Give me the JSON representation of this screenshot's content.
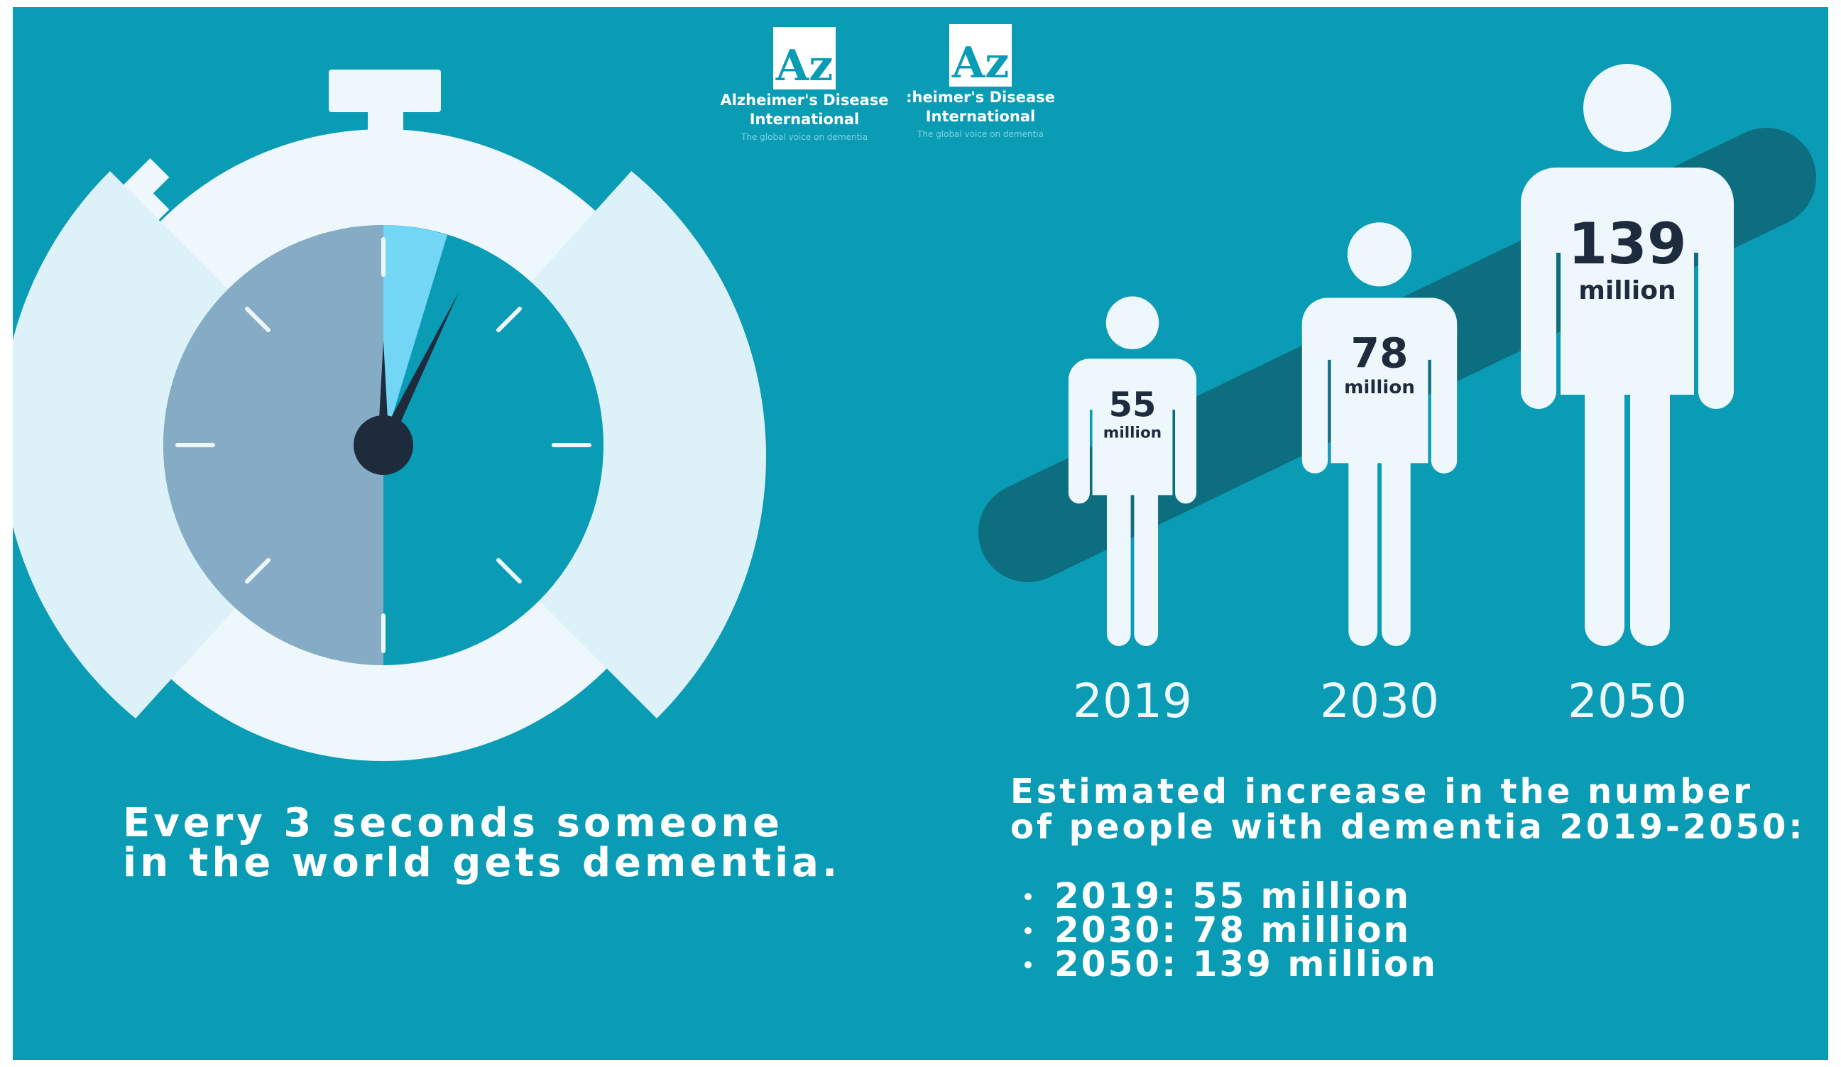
{
  "colors": {
    "panel": "#0a9bb5",
    "light": "#eef7fb",
    "dial_gray": "#85acc4",
    "wedge": "#73d6f5",
    "band": "#0d6e80",
    "hand": "#1e2b3d"
  },
  "logos": [
    {
      "name_line1": "Alzheimer's Disease",
      "name_line2": "International",
      "tagline": "The global voice on dementia"
    },
    {
      "name_line1": ":heimer's Disease",
      "name_line2": "International",
      "tagline": "The global voice on dementia"
    }
  ],
  "stopwatch": {
    "icon": "stopwatch-icon",
    "caption_line1": "Every 3 seconds someone",
    "caption_line2": "in the world gets dementia."
  },
  "chart_data": {
    "type": "bar",
    "categories": [
      "2019",
      "2030",
      "2050"
    ],
    "values": [
      55,
      78,
      139
    ],
    "value_labels": [
      "55",
      "78",
      "139"
    ],
    "unit_label": "million",
    "heading_line1": "Estimated increase in the number",
    "heading_line2": "of people with dementia 2019-2050:",
    "bullets": [
      "2019: 55 million",
      "2030: 78 million",
      "2050: 139 million"
    ]
  }
}
